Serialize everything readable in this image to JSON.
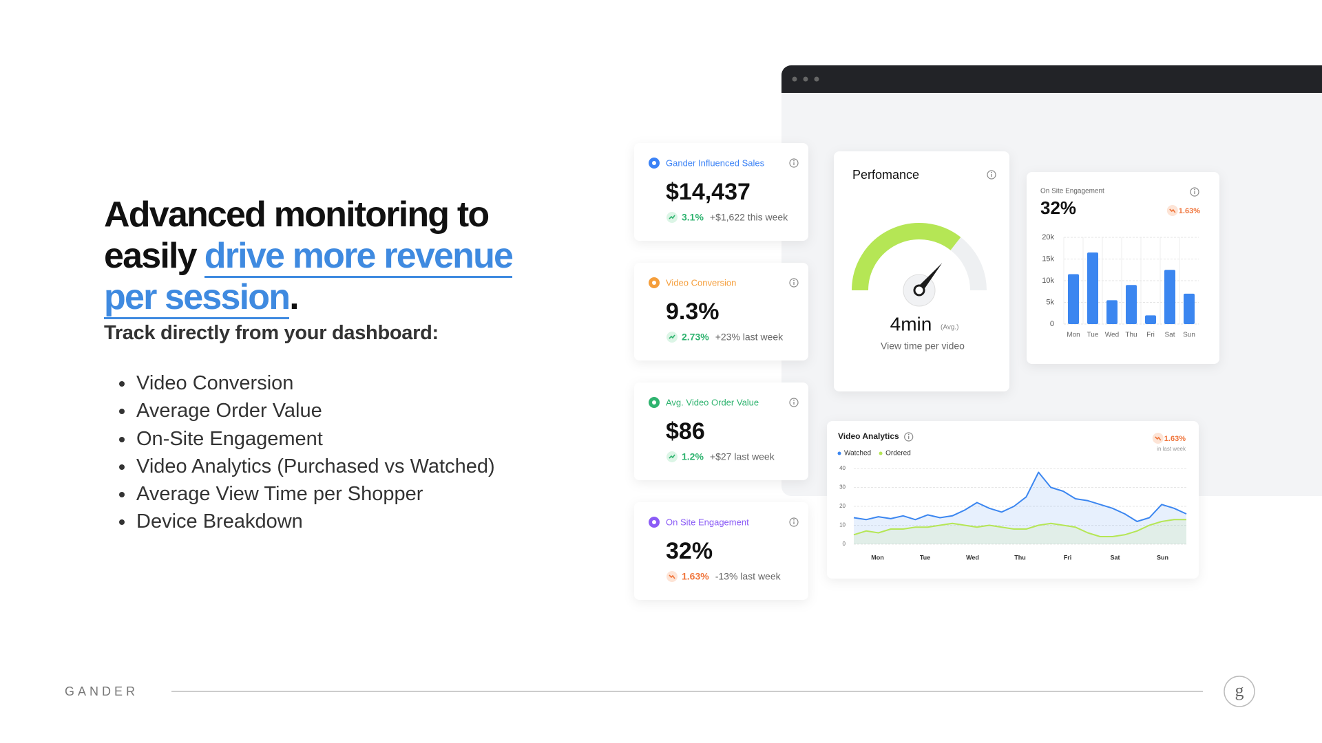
{
  "heading": {
    "line1": "Advanced monitoring to",
    "line2_plain": "easily",
    "line2_highlight": "drive more revenue",
    "line3_highlight": "per session",
    "line3_end": "."
  },
  "subheading": "Track directly from your dashboard:",
  "bullets": [
    "Video Conversion",
    "Average Order Value",
    "On-Site Engagement",
    "Video Analytics (Purchased vs Watched)",
    "Average View Time per Shopper",
    "Device Breakdown"
  ],
  "footer": {
    "brand": "GANDER",
    "logo": "g"
  },
  "cards": [
    {
      "label": "Gander Influenced Sales",
      "value": "$14,437",
      "change": "3.1%",
      "note": "+$1,622 this week",
      "color": "#3b82f6",
      "trend": "up"
    },
    {
      "label": "Video Conversion",
      "value": "9.3%",
      "change": "2.73%",
      "note": "+23% last week",
      "color": "#f59e3b",
      "trend": "up"
    },
    {
      "label": "Avg. Video Order Value",
      "value": "$86",
      "change": "1.2%",
      "note": "+$27 last week",
      "color": "#2fb36f",
      "trend": "up"
    },
    {
      "label": "On Site Engagement",
      "value": "32%",
      "change": "1.63%",
      "note": "-13% last week",
      "color": "#8b5cf6",
      "trend": "down"
    }
  ],
  "performance": {
    "title": "Perfomance",
    "value": "4min",
    "qualifier": "(Avg.)",
    "caption": "View time per video"
  },
  "engagement_chart": {
    "type": "bar",
    "title": "On Site Engagement",
    "headline": "32%",
    "badge": "1.63%",
    "categories": [
      "Mon",
      "Tue",
      "Wed",
      "Thu",
      "Fri",
      "Sat",
      "Sun"
    ],
    "values": [
      11500,
      16500,
      5500,
      9000,
      2000,
      12500,
      7000
    ],
    "color": "#3b86f0",
    "ylim": [
      0,
      20000
    ],
    "yticks": [
      0,
      {
        "value": 5000,
        "label": "5k"
      },
      {
        "value": 10000,
        "label": "10k"
      },
      {
        "value": 15000,
        "label": "15k"
      },
      {
        "value": 20000,
        "label": "20k"
      }
    ],
    "grid": true
  },
  "analytics_chart": {
    "type": "line",
    "title": "Video Analytics",
    "badge": "1.63%",
    "badge_note": "in last week",
    "categories": [
      "Mon",
      "Tue",
      "Wed",
      "Thu",
      "Fri",
      "Sat",
      "Sun"
    ],
    "series": [
      {
        "name": "Watched",
        "color": "#3b86f0",
        "values": [
          14,
          13,
          14.5,
          13.5,
          15,
          13,
          15.5,
          14,
          15,
          18,
          22,
          19,
          17,
          20,
          25,
          38,
          30,
          28,
          24,
          23,
          21,
          19,
          16,
          12,
          14,
          21,
          19,
          16
        ]
      },
      {
        "name": "Ordered",
        "color": "#b5e655",
        "values": [
          5,
          7,
          6,
          8,
          8,
          9,
          9,
          10,
          11,
          10,
          9,
          10,
          9,
          8,
          8,
          10,
          11,
          10,
          9,
          6,
          4,
          4,
          5,
          7,
          10,
          12,
          13,
          13
        ]
      }
    ],
    "ylim": [
      0,
      40
    ],
    "yticks": [
      0,
      10,
      20,
      30,
      40
    ],
    "grid": true
  }
}
